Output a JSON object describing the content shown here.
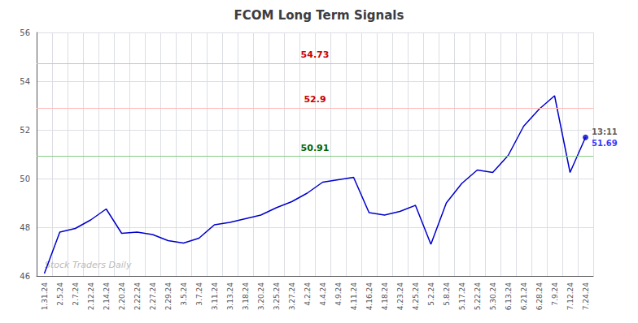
{
  "chart_data": {
    "type": "line",
    "title": "FCOM Long Term Signals",
    "categories": [
      "1.31.24",
      "2.5.24",
      "2.7.24",
      "2.12.24",
      "2.14.24",
      "2.20.24",
      "2.22.24",
      "2.27.24",
      "2.29.24",
      "3.5.24",
      "3.7.24",
      "3.11.24",
      "3.13.24",
      "3.18.24",
      "3.20.24",
      "3.25.24",
      "3.27.24",
      "4.2.24",
      "4.4.24",
      "4.9.24",
      "4.11.24",
      "4.16.24",
      "4.18.24",
      "4.23.24",
      "4.25.24",
      "5.2.24",
      "5.8.24",
      "5.17.24",
      "5.22.24",
      "5.30.24",
      "6.13.24",
      "6.21.24",
      "6.28.24",
      "7.9.24",
      "7.12.24",
      "7.24.24"
    ],
    "values": [
      46.1,
      47.8,
      47.95,
      48.3,
      48.75,
      47.75,
      47.8,
      47.7,
      47.45,
      47.35,
      47.55,
      48.1,
      48.2,
      48.35,
      48.5,
      48.8,
      49.05,
      49.4,
      49.85,
      49.95,
      50.05,
      48.6,
      48.5,
      48.65,
      48.9,
      47.3,
      49.0,
      49.8,
      50.35,
      50.25,
      50.95,
      52.15,
      52.85,
      53.4,
      50.25,
      51.69
    ],
    "color": "#0000cc",
    "hlines": [
      {
        "value": 54.73,
        "color": "#ffaaaa",
        "label_color": "#cc0000"
      },
      {
        "value": 52.9,
        "color": "#ffbbbb",
        "label_color": "#cc0000"
      },
      {
        "value": 50.91,
        "color": "#88cc88",
        "label_color": "#006600"
      }
    ],
    "annotations": [
      {
        "text": "13:11",
        "x": "7.24.24",
        "y": 51.69
      },
      {
        "text": "51.69",
        "x": "7.24.24",
        "y": 51.69,
        "color": "#0000ff"
      },
      {
        "text": "Stock Traders Daily",
        "color": "#bbbbbb"
      }
    ],
    "ylim": [
      46,
      56
    ],
    "yticks": [
      46,
      48,
      50,
      52,
      54,
      56
    ],
    "grid": true
  }
}
